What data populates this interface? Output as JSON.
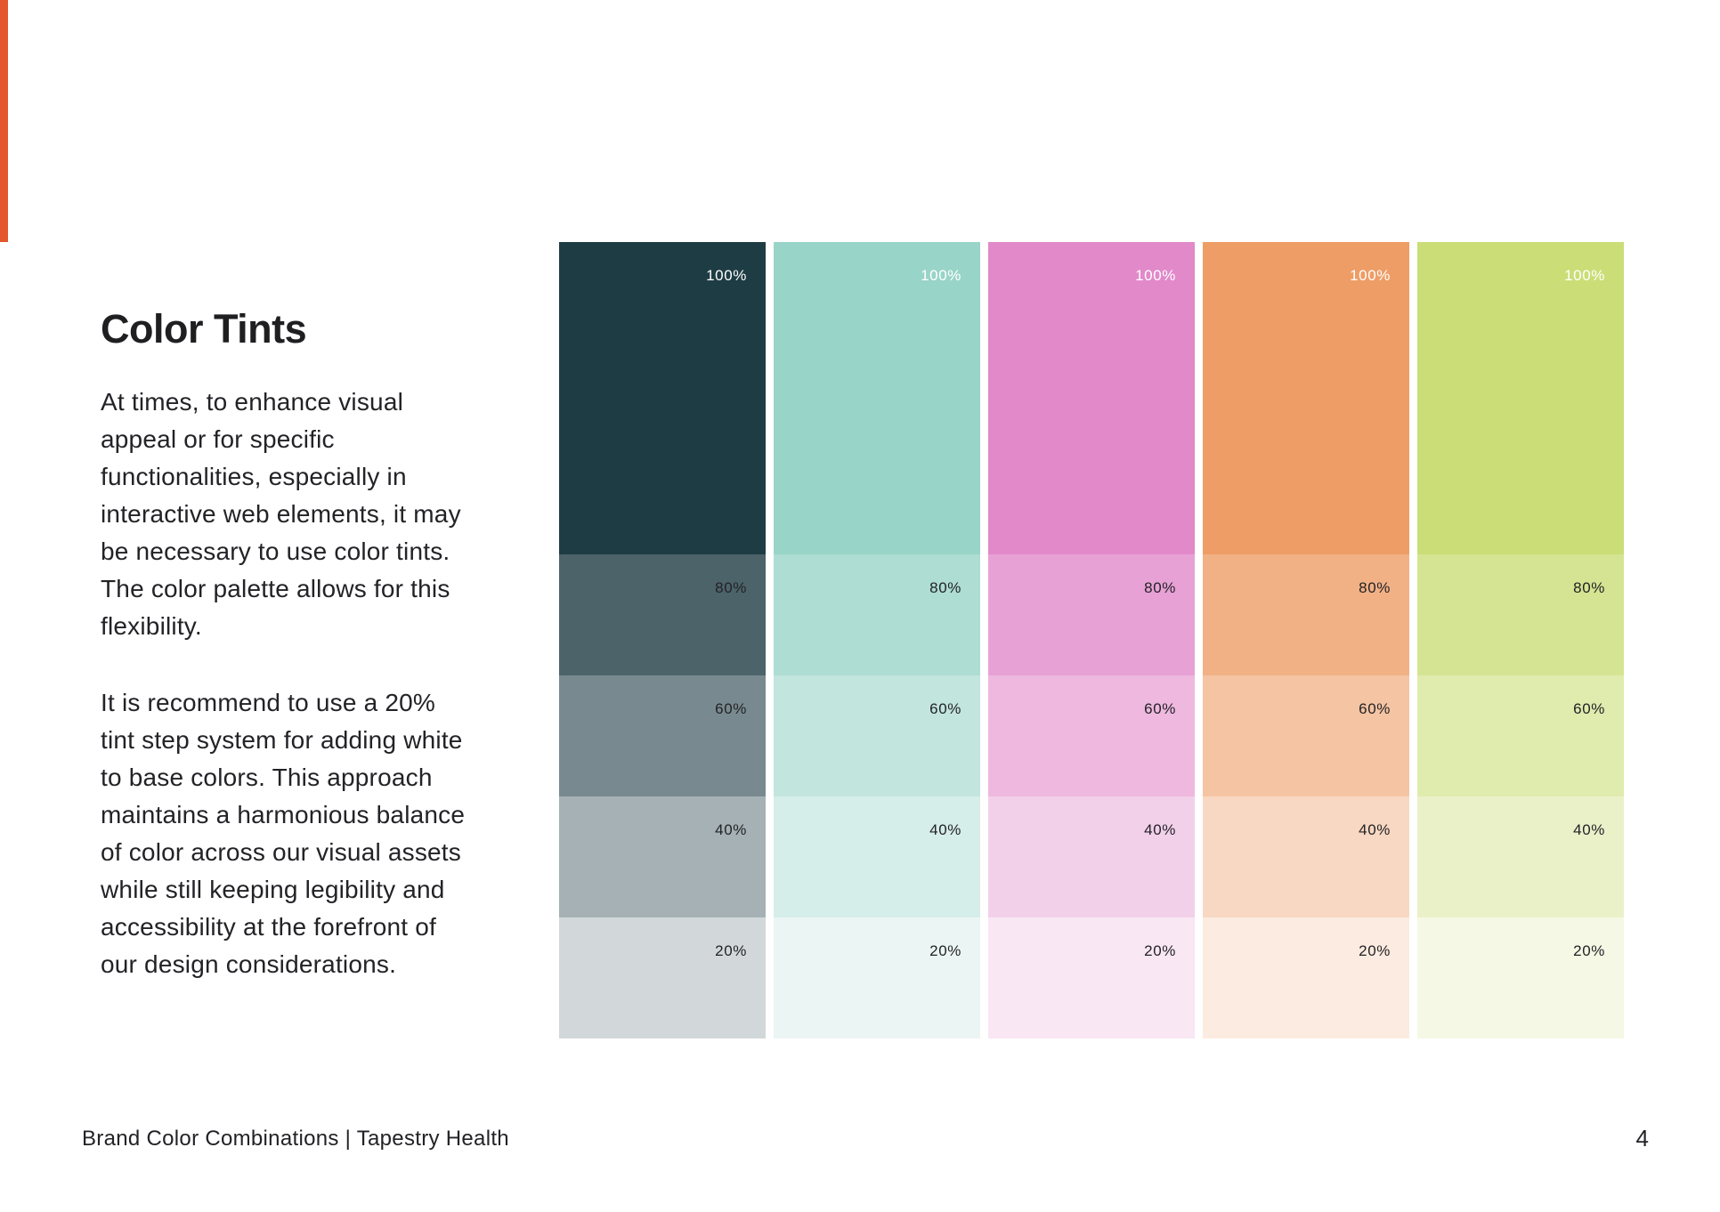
{
  "page": {
    "background": "#FFFFFF",
    "accent_bar_color": "#E4572E",
    "title": "Color Tints",
    "paragraphs": [
      {
        "lines": [
          "At times, to enhance visual",
          "appeal or for specific",
          "functionalities, especially in",
          "interactive web elements, it may",
          "be necessary to use color tints.",
          "The color palette allows for this",
          "flexibility."
        ]
      },
      {
        "lines": [
          "It is recommend to use a 20%",
          "tint step system for adding white",
          "to base colors. This approach",
          "maintains a harmonious balance",
          "of color across our visual assets",
          "while still keeping legibility and",
          "accessibility at the forefront of",
          "our design considerations."
        ]
      }
    ],
    "footer": {
      "left_text": "Brand Color Combinations | Tapestry Health",
      "page_number": "4"
    }
  },
  "tint_grid": {
    "tint_labels": [
      "100%",
      "80%",
      "60%",
      "40%",
      "20%"
    ],
    "base_label_color": "#FFFFFF",
    "tint_label_color": "#232226",
    "columns": [
      {
        "name": "dark-teal",
        "tints": [
          "#1E3C43",
          "#4B6369",
          "#788A8F",
          "#A5B1B4",
          "#D2D8DA"
        ]
      },
      {
        "name": "mint",
        "tints": [
          "#99D4C8",
          "#ADDDD3",
          "#C2E5DE",
          "#D6EEE9",
          "#EBF6F4"
        ]
      },
      {
        "name": "pink",
        "tints": [
          "#E289CA",
          "#E8A1D5",
          "#EEB8DF",
          "#F3D0EA",
          "#F9E7F4"
        ]
      },
      {
        "name": "orange",
        "tints": [
          "#EE9D66",
          "#F1B185",
          "#F5C4A3",
          "#F8D8C2",
          "#FCEBE0"
        ]
      },
      {
        "name": "lime",
        "tints": [
          "#CBDD77",
          "#D5E492",
          "#E0EBAE",
          "#EAF1C9",
          "#F5F8E4"
        ]
      }
    ]
  }
}
